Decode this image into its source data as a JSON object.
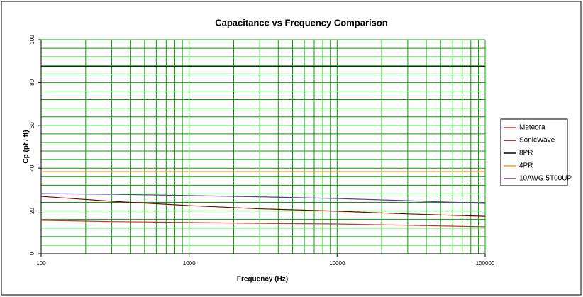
{
  "chart_data": {
    "type": "line",
    "title": "Capacitance  vs Frequency Comparison",
    "xlabel": "Frequency (Hz)",
    "ylabel": "Cp (pf / ft)",
    "x": [
      100,
      300,
      1000,
      3000,
      10000,
      30000,
      100000
    ],
    "xscale": "log",
    "xlim": [
      100,
      100000
    ],
    "xticks": [
      100,
      1000,
      10000,
      100000
    ],
    "xgrid": [
      100,
      200,
      300,
      400,
      500,
      600,
      700,
      800,
      900,
      1000,
      2000,
      3000,
      4000,
      5000,
      6000,
      7000,
      8000,
      9000,
      10000,
      20000,
      30000,
      40000,
      50000,
      60000,
      70000,
      80000,
      90000,
      100000
    ],
    "ylim": [
      0,
      100
    ],
    "yticks": [
      0,
      20,
      40,
      60,
      80,
      100
    ],
    "ygrid": [
      0,
      4,
      8,
      12,
      16,
      20,
      24,
      28,
      32,
      36,
      40,
      44,
      48,
      52,
      56,
      60,
      64,
      68,
      72,
      76,
      80,
      84,
      88,
      92,
      96,
      100
    ],
    "grid": true,
    "grid_color": "#00a000",
    "legend": "right",
    "series": [
      {
        "name": "Meteora",
        "color": "#d03030",
        "values": [
          15.6,
          15.0,
          14.6,
          14.2,
          13.9,
          13.3,
          12.6
        ]
      },
      {
        "name": "SonicWave",
        "color": "#800000",
        "values": [
          26.8,
          24.5,
          22.5,
          21.0,
          19.9,
          18.6,
          17.5
        ]
      },
      {
        "name": "8PR",
        "color": "#000000",
        "values": [
          87.5,
          87.5,
          87.5,
          87.5,
          87.5,
          87.5,
          87.5
        ]
      },
      {
        "name": "4PR",
        "color": "#ff9933",
        "values": [
          38.4,
          38.4,
          38.4,
          38.4,
          38.4,
          38.4,
          38.4
        ]
      },
      {
        "name": "10AWG 5T00UP",
        "color": "#663399",
        "values": [
          28.1,
          27.8,
          27.2,
          26.6,
          25.8,
          24.8,
          23.5
        ]
      }
    ]
  }
}
